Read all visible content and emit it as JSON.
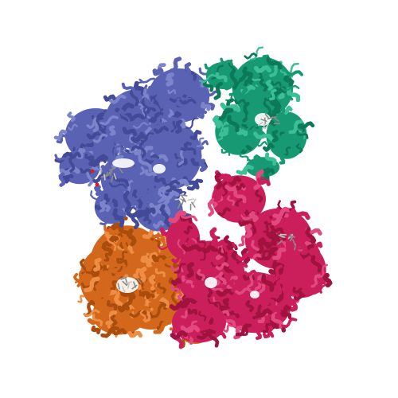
{
  "image": {
    "subject": "protein-cartoon-render",
    "background": "#ffffff",
    "chains": [
      {
        "id": "blue",
        "color": "#5a62b4",
        "shade": "#434a98",
        "light": "#7c84cc"
      },
      {
        "id": "green",
        "color": "#179a74",
        "shade": "#0c7a58",
        "light": "#3cbf96"
      },
      {
        "id": "crimson",
        "color": "#cb1f5c",
        "shade": "#a0133f",
        "light": "#e2497f"
      },
      {
        "id": "orange",
        "color": "#d3681c",
        "shade": "#a94c0c",
        "light": "#ee8e44"
      }
    ],
    "ligand_color": "#8a8a8a"
  }
}
